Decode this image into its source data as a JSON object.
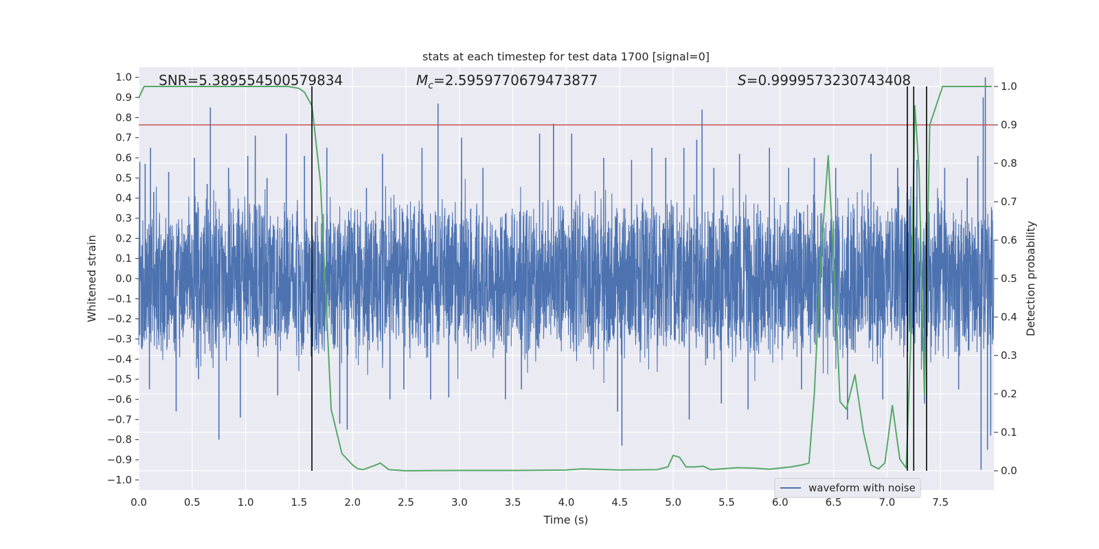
{
  "chart_data": {
    "type": "line",
    "title": "stats at each timestep for test data 1700 [signal=0]",
    "xlabel": "Time (s)",
    "ylabel_left": "Whitened strain",
    "ylabel_right": "Detection probability",
    "xlim": [
      0.0,
      8.0
    ],
    "ylim_left": [
      -1.05,
      1.05
    ],
    "ylim_right": [
      -0.05,
      1.05
    ],
    "x_ticks": [
      "0.0",
      "0.5",
      "1.0",
      "1.5",
      "2.0",
      "2.5",
      "3.0",
      "3.5",
      "4.0",
      "4.5",
      "5.0",
      "5.5",
      "6.0",
      "6.5",
      "7.0",
      "7.5"
    ],
    "y_left_ticks": [
      "1.0",
      "0.9",
      "0.8",
      "0.7",
      "0.6",
      "0.5",
      "0.4",
      "0.3",
      "0.2",
      "0.1",
      "0.0",
      "−0.1",
      "−0.2",
      "−0.3",
      "−0.4",
      "−0.5",
      "−0.6",
      "−0.7",
      "−0.8",
      "−0.9",
      "−1.0"
    ],
    "y_right_ticks": [
      "1.0",
      "0.9",
      "0.8",
      "0.7",
      "0.6",
      "0.5",
      "0.4",
      "0.3",
      "0.2",
      "0.1",
      "0.0"
    ],
    "annotations": {
      "snr": "SNR=5.389554500579834",
      "mc_symbol": "M",
      "mc_sub": "c",
      "mc_value": "=2.5959770679473877",
      "s_symbol": "S",
      "s_value": "=0.9999573230743408"
    },
    "legend": {
      "label": "waveform with noise",
      "location": "lower-right"
    },
    "threshold": {
      "value": 0.9,
      "axis": "right",
      "color": "#c44e52"
    },
    "vlines": [
      1.62,
      7.19,
      7.25,
      7.37
    ],
    "waveform": {
      "name": "waveform with noise",
      "color": "#4c72b0",
      "duration_s": 8.0,
      "core_amplitude": 0.41,
      "peaks": [
        {
          "t": 0.01,
          "v": 0.58
        },
        {
          "t": 0.03,
          "v": -0.35
        },
        {
          "t": 0.06,
          "v": 0.57
        },
        {
          "t": 0.1,
          "v": -0.55
        },
        {
          "t": 0.11,
          "v": 0.65
        },
        {
          "t": 0.14,
          "v": 0.43
        },
        {
          "t": 0.28,
          "v": 0.53
        },
        {
          "t": 0.35,
          "v": -0.66
        },
        {
          "t": 0.52,
          "v": 0.6
        },
        {
          "t": 0.56,
          "v": -0.5
        },
        {
          "t": 0.64,
          "v": 0.47
        },
        {
          "t": 0.67,
          "v": 0.85
        },
        {
          "t": 0.75,
          "v": -0.8
        },
        {
          "t": 0.84,
          "v": 0.55
        },
        {
          "t": 0.95,
          "v": -0.69
        },
        {
          "t": 1.02,
          "v": 0.61
        },
        {
          "t": 1.09,
          "v": 0.71
        },
        {
          "t": 1.2,
          "v": 0.5
        },
        {
          "t": 1.3,
          "v": -0.58
        },
        {
          "t": 1.38,
          "v": 0.72
        },
        {
          "t": 1.55,
          "v": 0.61
        },
        {
          "t": 1.76,
          "v": 0.65
        },
        {
          "t": 1.88,
          "v": -0.72
        },
        {
          "t": 1.95,
          "v": -0.75
        },
        {
          "t": 2.13,
          "v": 0.45
        },
        {
          "t": 2.28,
          "v": 0.62
        },
        {
          "t": 2.35,
          "v": -0.6
        },
        {
          "t": 2.48,
          "v": -0.55
        },
        {
          "t": 2.65,
          "v": 0.65
        },
        {
          "t": 2.73,
          "v": -0.6
        },
        {
          "t": 2.8,
          "v": 0.87
        },
        {
          "t": 2.9,
          "v": -0.59
        },
        {
          "t": 3.02,
          "v": 0.7
        },
        {
          "t": 3.22,
          "v": 0.55
        },
        {
          "t": 3.43,
          "v": -0.6
        },
        {
          "t": 3.58,
          "v": -0.55
        },
        {
          "t": 3.75,
          "v": 0.72
        },
        {
          "t": 3.88,
          "v": 0.77
        },
        {
          "t": 4.05,
          "v": 0.72
        },
        {
          "t": 4.35,
          "v": 0.6
        },
        {
          "t": 4.48,
          "v": -0.66
        },
        {
          "t": 4.52,
          "v": -0.83
        },
        {
          "t": 4.61,
          "v": 0.59
        },
        {
          "t": 4.8,
          "v": 0.65
        },
        {
          "t": 4.93,
          "v": 0.6
        },
        {
          "t": 5.1,
          "v": 0.65
        },
        {
          "t": 5.15,
          "v": -0.7
        },
        {
          "t": 5.22,
          "v": 0.69
        },
        {
          "t": 5.27,
          "v": 0.84
        },
        {
          "t": 5.38,
          "v": 0.55
        },
        {
          "t": 5.45,
          "v": -0.62
        },
        {
          "t": 5.62,
          "v": 0.62
        },
        {
          "t": 5.7,
          "v": -0.65
        },
        {
          "t": 5.9,
          "v": 0.65
        },
        {
          "t": 6.08,
          "v": 0.55
        },
        {
          "t": 6.2,
          "v": -0.55
        },
        {
          "t": 6.32,
          "v": 0.6
        },
        {
          "t": 6.52,
          "v": 0.55
        },
        {
          "t": 6.63,
          "v": -0.7
        },
        {
          "t": 6.85,
          "v": 0.62
        },
        {
          "t": 6.96,
          "v": -0.6
        },
        {
          "t": 7.1,
          "v": 0.55
        },
        {
          "t": 7.28,
          "v": 0.59
        },
        {
          "t": 7.35,
          "v": -0.62
        },
        {
          "t": 7.54,
          "v": 0.55
        },
        {
          "t": 7.67,
          "v": -0.55
        },
        {
          "t": 7.75,
          "v": 0.5
        },
        {
          "t": 7.85,
          "v": 0.61
        },
        {
          "t": 7.88,
          "v": -0.95
        },
        {
          "t": 7.9,
          "v": 0.9
        },
        {
          "t": 7.92,
          "v": 1.0
        },
        {
          "t": 7.94,
          "v": -0.85
        },
        {
          "t": 7.97,
          "v": -0.78
        }
      ]
    },
    "detection_probability": {
      "color": "#55a868",
      "x": [
        0.0,
        0.05,
        0.1,
        0.5,
        1.0,
        1.4,
        1.5,
        1.55,
        1.62,
        1.7,
        1.8,
        1.9,
        1.95,
        2.0,
        2.05,
        2.1,
        2.2,
        2.26,
        2.34,
        2.5,
        3.0,
        3.5,
        4.0,
        4.15,
        4.5,
        4.85,
        4.95,
        5.0,
        5.06,
        5.12,
        5.2,
        5.28,
        5.35,
        5.45,
        5.6,
        5.75,
        5.9,
        6.1,
        6.2,
        6.27,
        6.32,
        6.38,
        6.45,
        6.52,
        6.56,
        6.62,
        6.7,
        6.78,
        6.85,
        6.92,
        6.98,
        7.05,
        7.12,
        7.18,
        7.22,
        7.26,
        7.3,
        7.35,
        7.4,
        7.52,
        7.6,
        7.98
      ],
      "y": [
        0.97,
        1.0,
        1.0,
        1.0,
        1.0,
        1.0,
        0.995,
        0.985,
        0.95,
        0.75,
        0.16,
        0.045,
        0.03,
        0.015,
        0.005,
        0.003,
        0.013,
        0.02,
        0.003,
        0.0,
        0.001,
        0.001,
        0.002,
        0.005,
        0.002,
        0.003,
        0.01,
        0.04,
        0.035,
        0.01,
        0.01,
        0.012,
        0.003,
        0.005,
        0.008,
        0.007,
        0.004,
        0.01,
        0.015,
        0.02,
        0.2,
        0.55,
        0.82,
        0.45,
        0.18,
        0.16,
        0.25,
        0.1,
        0.015,
        0.005,
        0.02,
        0.17,
        0.03,
        0.007,
        0.32,
        0.95,
        0.78,
        0.2,
        0.9,
        1.0,
        1.0,
        1.0
      ]
    }
  }
}
